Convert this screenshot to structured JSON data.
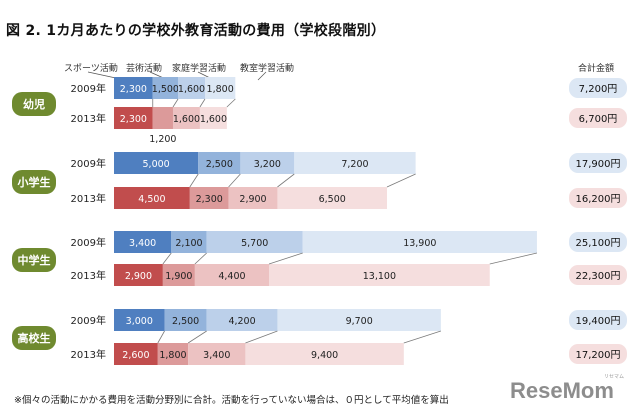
{
  "title": "図 2.  1カ月あたりの学校外教育活動の費用（学校段階別）",
  "legend": [
    "スポーツ活動",
    "芸術活動",
    "家庭学習活動",
    "教室学習活動"
  ],
  "total_header": "合計金額",
  "footnote": "※個々の活動にかかる費用を活動分野別に合計。活動を行っていない場合は、０円として平均値を算出",
  "watermark": "ReseMom",
  "watermark_sub": "リセマム",
  "colors": {
    "y2009": [
      "#4f7fc0",
      "#93b3db",
      "#bcd0ea",
      "#dce7f4"
    ],
    "y2013": [
      "#c14d4d",
      "#dc9a9a",
      "#ecc2c2",
      "#f5dede"
    ],
    "group_label_bg": "#6f8a2f",
    "total_2009_bg": "#dce7f4",
    "total_2013_bg": "#f5dede"
  },
  "chart_data": {
    "type": "bar",
    "stacked": true,
    "orientation": "horizontal",
    "groups": [
      "幼児",
      "小学生",
      "中学生",
      "高校生"
    ],
    "years": [
      "2009年",
      "2013年"
    ],
    "categories": [
      "スポーツ活動",
      "芸術活動",
      "家庭学習活動",
      "教室学習活動"
    ],
    "rows": [
      {
        "group": "幼児",
        "year": "2009年",
        "values": [
          2300,
          1500,
          1600,
          1800
        ],
        "labels": [
          "2,300",
          "1,500",
          "1,600",
          "1,800"
        ],
        "total": "7,200円"
      },
      {
        "group": "幼児",
        "year": "2013年",
        "values": [
          2300,
          1200,
          1600,
          1600
        ],
        "labels": [
          "2,300",
          "1,200",
          "1,600",
          "1,600"
        ],
        "total": "6,700円"
      },
      {
        "group": "小学生",
        "year": "2009年",
        "values": [
          5000,
          2500,
          3200,
          7200
        ],
        "labels": [
          "5,000",
          "2,500",
          "3,200",
          "7,200"
        ],
        "total": "17,900円"
      },
      {
        "group": "小学生",
        "year": "2013年",
        "values": [
          4500,
          2300,
          2900,
          6500
        ],
        "labels": [
          "4,500",
          "2,300",
          "2,900",
          "6,500"
        ],
        "total": "16,200円"
      },
      {
        "group": "中学生",
        "year": "2009年",
        "values": [
          3400,
          2100,
          5700,
          13900
        ],
        "labels": [
          "3,400",
          "2,100",
          "5,700",
          "13,900"
        ],
        "total": "25,100円"
      },
      {
        "group": "中学生",
        "year": "2013年",
        "values": [
          2900,
          1900,
          4400,
          13100
        ],
        "labels": [
          "2,900",
          "1,900",
          "4,400",
          "13,100"
        ],
        "total": "22,300円"
      },
      {
        "group": "高校生",
        "year": "2009年",
        "values": [
          3000,
          2500,
          4200,
          9700
        ],
        "labels": [
          "3,000",
          "2,500",
          "4,200",
          "9,700"
        ],
        "total": "19,400円"
      },
      {
        "group": "高校生",
        "year": "2013年",
        "values": [
          2600,
          1800,
          3400,
          9400
        ],
        "labels": [
          "2,600",
          "1,800",
          "3,400",
          "9,400"
        ],
        "total": "17,200円"
      }
    ]
  }
}
